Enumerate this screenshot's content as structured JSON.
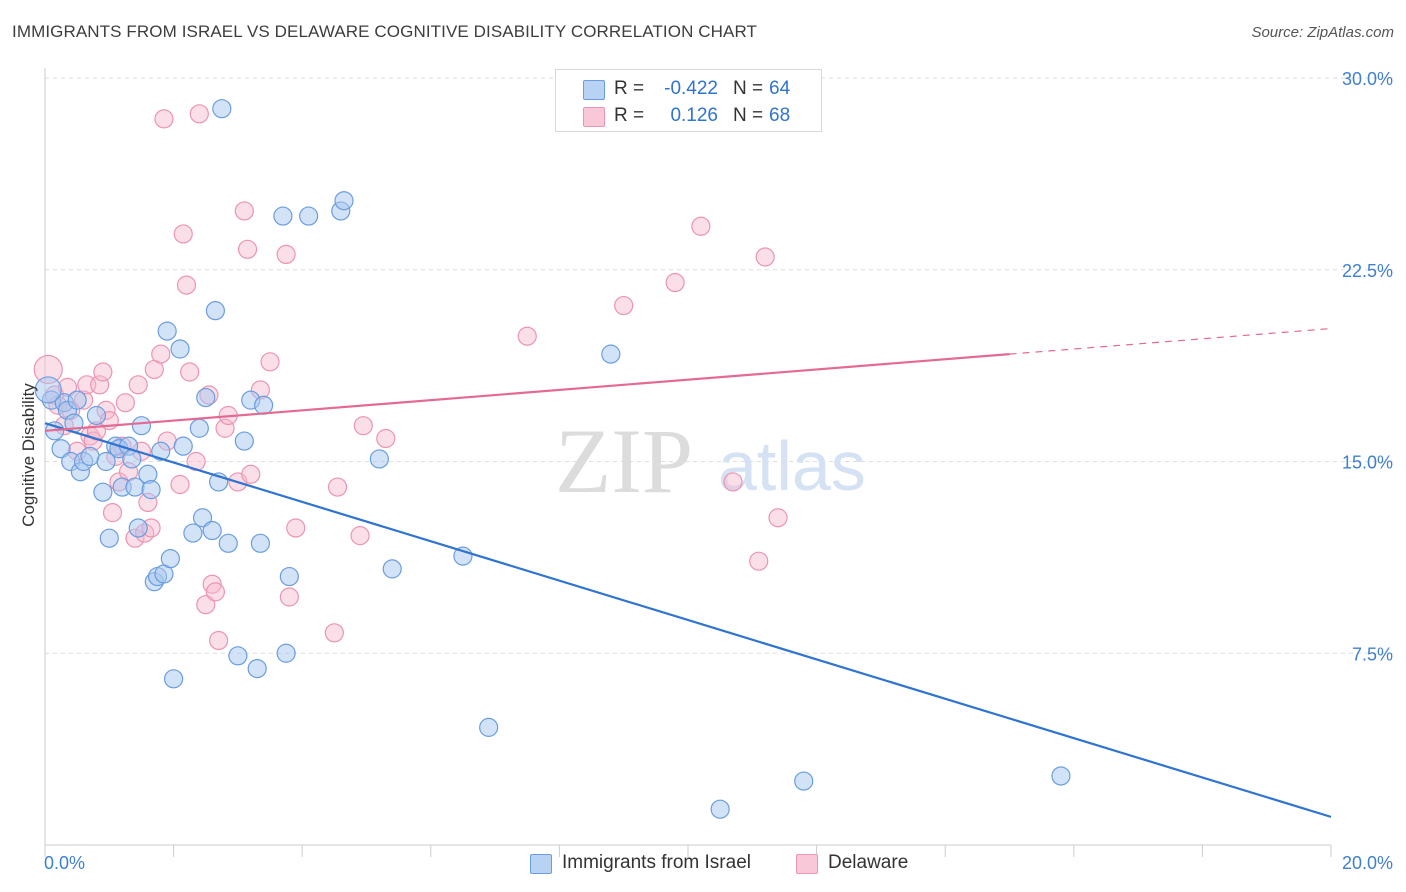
{
  "title": "IMMIGRANTS FROM ISRAEL VS DELAWARE COGNITIVE DISABILITY CORRELATION CHART",
  "source": "Source: ZipAtlas.com",
  "watermark": {
    "zip": "ZIP",
    "atlas": "atlas"
  },
  "legend_top": {
    "rows": [
      {
        "r_label": "R =",
        "r_value": "-0.422",
        "n_label": "N =",
        "n_value": "64"
      },
      {
        "r_label": "R =",
        "r_value": "0.126",
        "n_label": "N =",
        "n_value": "68"
      }
    ]
  },
  "legend_bottom": {
    "items": [
      {
        "label": "Immigrants from Israel"
      },
      {
        "label": "Delaware"
      }
    ]
  },
  "colors": {
    "blue_fill": "#a8c8f0",
    "blue_stroke": "#6a9de0",
    "blue_line": "#2f74d0",
    "pink_fill": "#f6b8cc",
    "pink_stroke": "#ec94b2",
    "pink_line": "#e46a92",
    "axis_text": "#3f7fd0",
    "grid": "#dddddd"
  },
  "chart_data": {
    "type": "scatter",
    "title": "IMMIGRANTS FROM ISRAEL VS DELAWARE COGNITIVE DISABILITY CORRELATION CHART",
    "xlabel": "",
    "ylabel": "Cognitive Disability",
    "xlim": [
      0,
      20
    ],
    "ylim": [
      0,
      30
    ],
    "x_tick_labels": [
      "0.0%",
      "20.0%"
    ],
    "y_ticks": [
      7.5,
      15.0,
      22.5,
      30.0
    ],
    "y_tick_labels": [
      "7.5%",
      "15.0%",
      "22.5%",
      "30.0%"
    ],
    "grid": "horizontal dashed",
    "series": [
      {
        "name": "Immigrants from Israel",
        "color": "#6a9de0",
        "trend": {
          "x0": 0,
          "y0": 16.5,
          "x1": 20,
          "y1": 1.1
        },
        "points": [
          [
            0.1,
            17.4
          ],
          [
            0.15,
            16.2
          ],
          [
            0.25,
            15.5
          ],
          [
            0.3,
            17.3
          ],
          [
            0.35,
            17.0
          ],
          [
            0.4,
            15.0
          ],
          [
            0.5,
            17.4
          ],
          [
            0.55,
            14.6
          ],
          [
            0.6,
            15.0
          ],
          [
            0.7,
            15.2
          ],
          [
            0.8,
            16.8
          ],
          [
            0.9,
            13.8
          ],
          [
            0.95,
            15.0
          ],
          [
            1.0,
            12.0
          ],
          [
            1.1,
            15.6
          ],
          [
            1.15,
            15.5
          ],
          [
            1.2,
            14.0
          ],
          [
            1.3,
            15.6
          ],
          [
            1.35,
            15.1
          ],
          [
            1.4,
            14.0
          ],
          [
            1.45,
            12.4
          ],
          [
            1.5,
            16.4
          ],
          [
            1.6,
            14.5
          ],
          [
            1.65,
            13.9
          ],
          [
            1.7,
            10.3
          ],
          [
            1.75,
            10.5
          ],
          [
            1.8,
            15.4
          ],
          [
            1.85,
            10.6
          ],
          [
            1.9,
            20.1
          ],
          [
            1.95,
            11.2
          ],
          [
            2.0,
            6.5
          ],
          [
            2.1,
            19.4
          ],
          [
            2.15,
            15.6
          ],
          [
            2.3,
            12.2
          ],
          [
            2.4,
            16.3
          ],
          [
            2.45,
            12.8
          ],
          [
            2.6,
            12.3
          ],
          [
            2.65,
            20.9
          ],
          [
            2.7,
            14.2
          ],
          [
            2.75,
            28.8
          ],
          [
            2.85,
            11.8
          ],
          [
            3.0,
            7.4
          ],
          [
            3.1,
            15.8
          ],
          [
            3.2,
            17.4
          ],
          [
            3.3,
            6.9
          ],
          [
            3.35,
            11.8
          ],
          [
            3.4,
            17.2
          ],
          [
            3.7,
            24.6
          ],
          [
            3.75,
            7.5
          ],
          [
            3.8,
            10.5
          ],
          [
            4.1,
            24.6
          ],
          [
            4.6,
            24.8
          ],
          [
            4.65,
            25.2
          ],
          [
            5.2,
            15.1
          ],
          [
            5.4,
            10.8
          ],
          [
            6.5,
            11.3
          ],
          [
            6.9,
            4.6
          ],
          [
            8.8,
            19.2
          ],
          [
            10.5,
            1.4
          ],
          [
            11.8,
            2.5
          ],
          [
            15.8,
            2.7
          ],
          [
            0.05,
            17.8
          ],
          [
            0.45,
            16.5
          ],
          [
            2.5,
            17.5
          ]
        ]
      },
      {
        "name": "Delaware",
        "color": "#ec94b2",
        "trend": {
          "x0": 0,
          "y0": 16.2,
          "x1": 15,
          "y1": 19.2,
          "dashed_to_x": 20,
          "dashed_to_y": 20.2
        },
        "points": [
          [
            0.05,
            18.6
          ],
          [
            0.15,
            17.6
          ],
          [
            0.2,
            17.2
          ],
          [
            0.3,
            16.4
          ],
          [
            0.4,
            17.0
          ],
          [
            0.5,
            15.4
          ],
          [
            0.6,
            17.4
          ],
          [
            0.65,
            18.0
          ],
          [
            0.7,
            16.0
          ],
          [
            0.75,
            15.8
          ],
          [
            0.8,
            16.2
          ],
          [
            0.85,
            18.0
          ],
          [
            0.9,
            18.5
          ],
          [
            0.95,
            17.0
          ],
          [
            1.0,
            16.6
          ],
          [
            1.05,
            13.0
          ],
          [
            1.1,
            15.2
          ],
          [
            1.15,
            14.2
          ],
          [
            1.2,
            15.6
          ],
          [
            1.25,
            17.3
          ],
          [
            1.3,
            14.6
          ],
          [
            1.4,
            12.0
          ],
          [
            1.45,
            18.0
          ],
          [
            1.5,
            15.4
          ],
          [
            1.55,
            12.2
          ],
          [
            1.6,
            13.4
          ],
          [
            1.65,
            12.4
          ],
          [
            1.7,
            18.6
          ],
          [
            1.8,
            19.2
          ],
          [
            1.85,
            28.4
          ],
          [
            1.9,
            15.8
          ],
          [
            2.1,
            14.1
          ],
          [
            2.15,
            23.9
          ],
          [
            2.2,
            21.9
          ],
          [
            2.25,
            18.5
          ],
          [
            2.35,
            15.0
          ],
          [
            2.4,
            28.6
          ],
          [
            2.5,
            9.4
          ],
          [
            2.55,
            17.6
          ],
          [
            2.6,
            10.2
          ],
          [
            2.65,
            9.9
          ],
          [
            2.7,
            8.0
          ],
          [
            2.8,
            16.3
          ],
          [
            2.85,
            16.8
          ],
          [
            3.0,
            14.2
          ],
          [
            3.1,
            24.8
          ],
          [
            3.15,
            23.3
          ],
          [
            3.2,
            14.5
          ],
          [
            3.35,
            17.8
          ],
          [
            3.5,
            18.9
          ],
          [
            3.75,
            23.1
          ],
          [
            3.8,
            9.7
          ],
          [
            3.9,
            12.4
          ],
          [
            4.5,
            8.3
          ],
          [
            4.55,
            14.0
          ],
          [
            4.9,
            12.1
          ],
          [
            4.95,
            16.4
          ],
          [
            5.3,
            15.9
          ],
          [
            7.5,
            19.9
          ],
          [
            8.3,
            29.9
          ],
          [
            9.0,
            21.1
          ],
          [
            9.8,
            22.0
          ],
          [
            10.2,
            24.2
          ],
          [
            10.7,
            14.2
          ],
          [
            11.1,
            11.1
          ],
          [
            11.2,
            23.0
          ],
          [
            11.4,
            12.8
          ],
          [
            0.35,
            17.9
          ]
        ]
      }
    ]
  }
}
